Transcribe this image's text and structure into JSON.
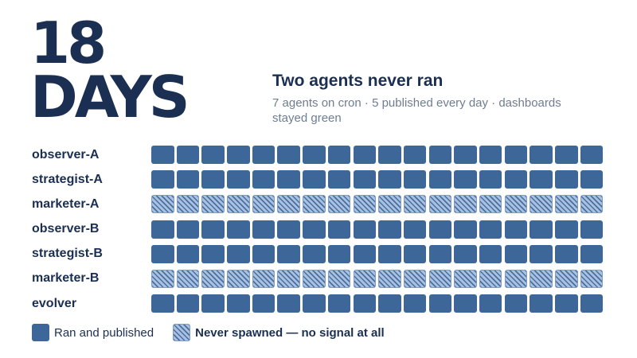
{
  "hero": {
    "number": "18",
    "unit": "DAYS"
  },
  "headline": "Two agents never ran",
  "subline": "7 agents on cron · 5 published every day · dashboards stayed green",
  "colors": {
    "ran": "#3d6798",
    "never": "#a9c1e0",
    "text": "#1b2f52",
    "muted": "#6e7d91"
  },
  "chart_data": {
    "type": "heatmap",
    "days": 18,
    "rows": [
      {
        "agent": "observer-A",
        "status": "ran"
      },
      {
        "agent": "strategist-A",
        "status": "ran"
      },
      {
        "agent": "marketer-A",
        "status": "never"
      },
      {
        "agent": "observer-B",
        "status": "ran"
      },
      {
        "agent": "strategist-B",
        "status": "ran"
      },
      {
        "agent": "marketer-B",
        "status": "never"
      },
      {
        "agent": "evolver",
        "status": "ran"
      }
    ],
    "legend": [
      {
        "key": "ran",
        "label": "Ran and published",
        "bold": false
      },
      {
        "key": "never",
        "label": "Never spawned — no signal at all",
        "bold": true
      }
    ]
  }
}
